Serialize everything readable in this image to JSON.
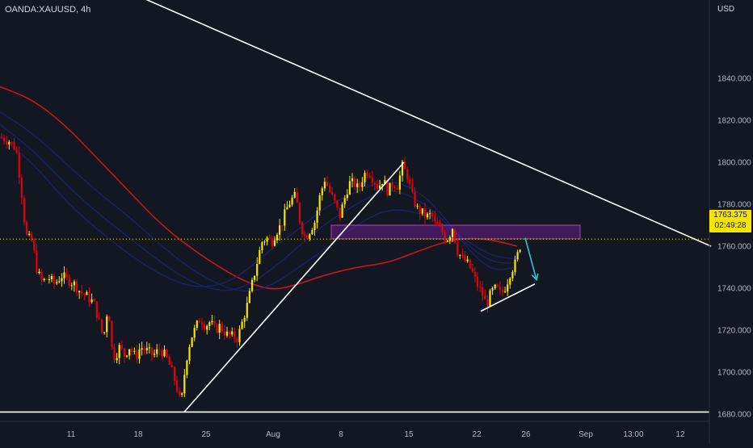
{
  "header": {
    "symbol_label": "OANDA:XAUUSD, 4h",
    "currency": "USD"
  },
  "price_tag": {
    "price": "1763.375",
    "countdown": "02:49:28"
  },
  "colors": {
    "background": "#131722",
    "bull_candle": "#f7e400",
    "bear_candle": "#e4000a",
    "ma_red": "#c4161c",
    "ma_blue": "#1b237d",
    "trendline": "#ffffff",
    "zone_fill": "#7b1fa2",
    "arrow": "#26c6da",
    "dotted_price_line": "#f7e400"
  },
  "chart_data": {
    "type": "candlestick",
    "symbol": "OANDA:XAUUSD",
    "timeframe": "4h",
    "currency": "USD",
    "ylim": [
      1666,
      1892
    ],
    "y_ticks": [
      "1840.000",
      "1820.000",
      "1800.000",
      "1780.000",
      "1760.000",
      "1740.000",
      "1720.000",
      "1700.000",
      "1680.000"
    ],
    "x_ticks": [
      "11",
      "18",
      "25",
      "Aug",
      "8",
      "15",
      "22",
      "26",
      "Sep",
      "13:00",
      "12"
    ],
    "last_price": 1763.375,
    "path_points": [
      [
        0,
        1812
      ],
      [
        12,
        1810
      ],
      [
        20,
        1806
      ],
      [
        26,
        1788
      ],
      [
        32,
        1765
      ],
      [
        40,
        1762
      ],
      [
        46,
        1748
      ],
      [
        52,
        1743
      ],
      [
        60,
        1745
      ],
      [
        68,
        1742
      ],
      [
        76,
        1746
      ],
      [
        84,
        1744
      ],
      [
        92,
        1742
      ],
      [
        100,
        1738
      ],
      [
        108,
        1736
      ],
      [
        116,
        1733
      ],
      [
        122,
        1725
      ],
      [
        128,
        1716
      ],
      [
        134,
        1733
      ],
      [
        138,
        1712
      ],
      [
        142,
        1707
      ],
      [
        148,
        1712
      ],
      [
        154,
        1708
      ],
      [
        160,
        1712
      ],
      [
        168,
        1707
      ],
      [
        174,
        1712
      ],
      [
        182,
        1710
      ],
      [
        190,
        1708
      ],
      [
        198,
        1711
      ],
      [
        206,
        1707
      ],
      [
        212,
        1701
      ],
      [
        218,
        1694
      ],
      [
        224,
        1684
      ],
      [
        230,
        1705
      ],
      [
        236,
        1716
      ],
      [
        242,
        1721
      ],
      [
        248,
        1726
      ],
      [
        254,
        1722
      ],
      [
        260,
        1724
      ],
      [
        266,
        1720
      ],
      [
        272,
        1722
      ],
      [
        280,
        1718
      ],
      [
        288,
        1717
      ],
      [
        294,
        1716
      ],
      [
        300,
        1724
      ],
      [
        306,
        1732
      ],
      [
        312,
        1742
      ],
      [
        318,
        1752
      ],
      [
        324,
        1762
      ],
      [
        330,
        1764
      ],
      [
        336,
        1762
      ],
      [
        342,
        1767
      ],
      [
        348,
        1770
      ],
      [
        354,
        1777
      ],
      [
        360,
        1782
      ],
      [
        366,
        1784
      ],
      [
        372,
        1770
      ],
      [
        378,
        1764
      ],
      [
        384,
        1768
      ],
      [
        390,
        1772
      ],
      [
        396,
        1784
      ],
      [
        402,
        1792
      ],
      [
        408,
        1786
      ],
      [
        414,
        1781
      ],
      [
        420,
        1774
      ],
      [
        426,
        1782
      ],
      [
        432,
        1790
      ],
      [
        438,
        1790
      ],
      [
        444,
        1787
      ],
      [
        450,
        1794
      ],
      [
        456,
        1796
      ],
      [
        462,
        1792
      ],
      [
        468,
        1788
      ],
      [
        474,
        1792
      ],
      [
        480,
        1786
      ],
      [
        486,
        1790
      ],
      [
        492,
        1789
      ],
      [
        498,
        1798
      ],
      [
        504,
        1794
      ],
      [
        510,
        1784
      ],
      [
        516,
        1778
      ],
      [
        522,
        1776
      ],
      [
        528,
        1774
      ],
      [
        534,
        1775
      ],
      [
        540,
        1769
      ],
      [
        546,
        1768
      ],
      [
        552,
        1763
      ],
      [
        556,
        1765
      ],
      [
        560,
        1769
      ],
      [
        566,
        1758
      ],
      [
        572,
        1754
      ],
      [
        578,
        1752
      ],
      [
        584,
        1748
      ],
      [
        590,
        1742
      ],
      [
        596,
        1738
      ],
      [
        602,
        1732
      ],
      [
        608,
        1738
      ],
      [
        614,
        1740
      ],
      [
        620,
        1737
      ],
      [
        626,
        1741
      ],
      [
        632,
        1748
      ],
      [
        638,
        1752
      ],
      [
        642,
        1758
      ],
      [
        646,
        1763
      ]
    ],
    "moving_averages": [
      {
        "color": "#c4161c",
        "points": [
          [
            0,
            1836
          ],
          [
            40,
            1830
          ],
          [
            80,
            1818
          ],
          [
            120,
            1802
          ],
          [
            160,
            1786
          ],
          [
            200,
            1770
          ],
          [
            240,
            1758
          ],
          [
            280,
            1748
          ],
          [
            310,
            1742
          ],
          [
            340,
            1739
          ],
          [
            370,
            1742
          ],
          [
            400,
            1746
          ],
          [
            440,
            1750
          ],
          [
            480,
            1752
          ],
          [
            520,
            1758
          ],
          [
            550,
            1762
          ],
          [
            580,
            1764
          ],
          [
            610,
            1763
          ],
          [
            640,
            1760
          ]
        ]
      },
      {
        "color": "#1b237d",
        "points": [
          [
            0,
            1824
          ],
          [
            40,
            1814
          ],
          [
            80,
            1800
          ],
          [
            120,
            1786
          ],
          [
            160,
            1774
          ],
          [
            200,
            1760
          ],
          [
            240,
            1748
          ],
          [
            280,
            1740
          ],
          [
            310,
            1738
          ],
          [
            340,
            1742
          ],
          [
            370,
            1750
          ],
          [
            400,
            1758
          ],
          [
            440,
            1770
          ],
          [
            480,
            1778
          ],
          [
            520,
            1776
          ],
          [
            550,
            1770
          ],
          [
            580,
            1762
          ],
          [
            610,
            1755
          ],
          [
            640,
            1754
          ]
        ]
      },
      {
        "color": "#1b237d",
        "points": [
          [
            0,
            1818
          ],
          [
            40,
            1806
          ],
          [
            80,
            1790
          ],
          [
            120,
            1776
          ],
          [
            160,
            1764
          ],
          [
            200,
            1752
          ],
          [
            240,
            1742
          ],
          [
            280,
            1738
          ],
          [
            310,
            1742
          ],
          [
            340,
            1750
          ],
          [
            370,
            1760
          ],
          [
            400,
            1770
          ],
          [
            440,
            1780
          ],
          [
            480,
            1788
          ],
          [
            520,
            1782
          ],
          [
            550,
            1772
          ],
          [
            580,
            1760
          ],
          [
            610,
            1752
          ],
          [
            640,
            1752
          ]
        ]
      },
      {
        "color": "#1b237d",
        "points": [
          [
            0,
            1812
          ],
          [
            40,
            1800
          ],
          [
            80,
            1782
          ],
          [
            120,
            1768
          ],
          [
            160,
            1756
          ],
          [
            200,
            1746
          ],
          [
            240,
            1740
          ],
          [
            280,
            1742
          ],
          [
            310,
            1750
          ],
          [
            340,
            1760
          ],
          [
            370,
            1768
          ],
          [
            400,
            1778
          ],
          [
            440,
            1786
          ],
          [
            480,
            1792
          ],
          [
            520,
            1786
          ],
          [
            550,
            1774
          ],
          [
            580,
            1758
          ],
          [
            610,
            1748
          ],
          [
            640,
            1750
          ]
        ]
      }
    ],
    "drawings": {
      "trendlines": [
        {
          "from": [
            95,
            1892
          ],
          "to": [
            880,
            1760
          ]
        },
        {
          "from": [
            228,
            1681
          ],
          "to": [
            500,
            1800
          ]
        },
        {
          "from": [
            595,
            1729
          ],
          "to": [
            662,
            1742
          ]
        },
        {
          "from": [
            0,
            1681
          ],
          "to": [
            878,
            1681
          ]
        }
      ],
      "zone": {
        "x0": 410,
        "x1": 718,
        "y_low": 1763.5,
        "y_high": 1770
      },
      "arrow": {
        "from": [
          650,
          1764
        ],
        "to": [
          664,
          1744
        ]
      },
      "price_line": 1763.375
    }
  }
}
